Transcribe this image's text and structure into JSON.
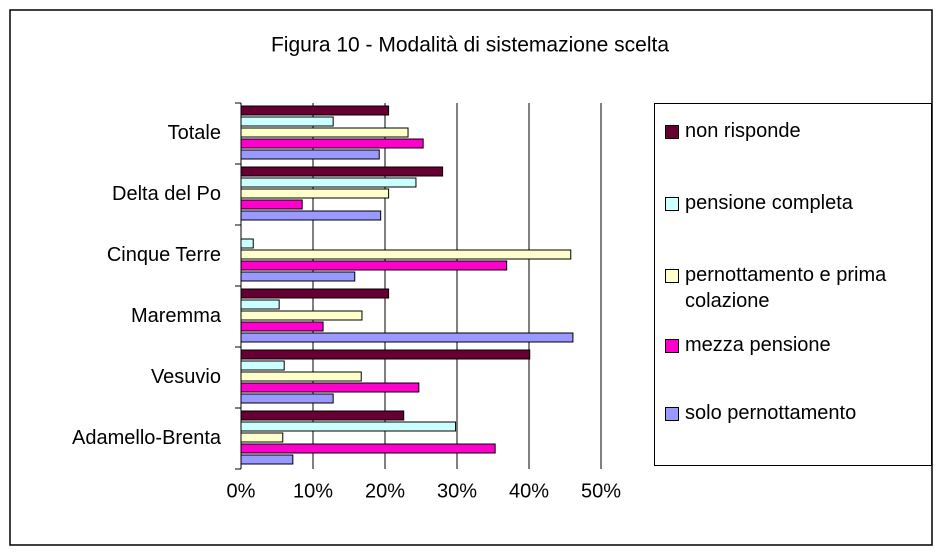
{
  "chart_data": {
    "type": "bar",
    "orientation": "horizontal",
    "title": "Figura 10 - Modalità di sistemazione scelta",
    "categories": [
      "Totale",
      "Delta del Po",
      "Cinque Terre",
      "Maremma",
      "Vesuvio",
      "Adamello-Brenta"
    ],
    "series": [
      {
        "name": "non risponde",
        "color": "#660033",
        "values": [
          20.5,
          28,
          0,
          20.5,
          40.1,
          22.6
        ]
      },
      {
        "name": "pensione completa",
        "color": "#ccffff",
        "values": [
          12.8,
          24.3,
          1.7,
          5.3,
          6,
          29.8
        ]
      },
      {
        "name": "pernottamento e prima colazione",
        "color": "#ffffcc",
        "values": [
          23.2,
          20.5,
          45.8,
          16.8,
          16.7,
          5.8
        ]
      },
      {
        "name": "mezza pensione",
        "color": "#ff00cc",
        "values": [
          25.3,
          8.5,
          36.9,
          11.4,
          24.7,
          35.3
        ]
      },
      {
        "name": "solo pernottamento",
        "color": "#9999ff",
        "values": [
          19.2,
          19.4,
          15.8,
          46.1,
          12.8,
          7.2
        ]
      }
    ],
    "xlim": [
      0,
      50
    ],
    "xticks": [
      {
        "value": 0,
        "label": "0%"
      },
      {
        "value": 10,
        "label": "10%"
      },
      {
        "value": 20,
        "label": "20%"
      },
      {
        "value": 30,
        "label": "30%"
      },
      {
        "value": 40,
        "label": "40%"
      },
      {
        "value": 50,
        "label": "50%"
      }
    ],
    "grid": true
  }
}
